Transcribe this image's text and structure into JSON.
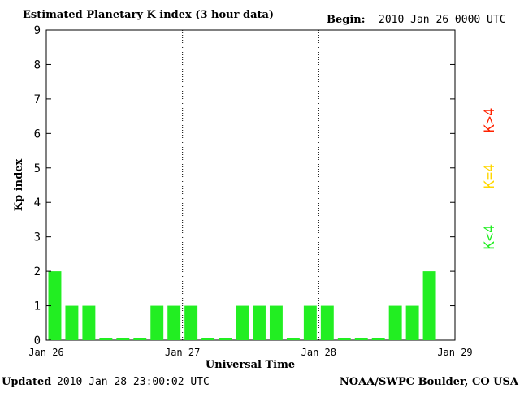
{
  "header": {
    "title": "Estimated Planetary K index (3 hour data)",
    "begin_label": "Begin:",
    "begin_value": "2010 Jan 26 0000 UTC"
  },
  "footer": {
    "updated_label": "Updated",
    "updated_value": "2010 Jan 28 23:00:02 UTC",
    "source": "NOAA/SWPC Boulder, CO USA"
  },
  "legend": {
    "low": "K<4",
    "mid": "K=4",
    "high": "K>4"
  },
  "colors": {
    "low": "#22ee22",
    "mid": "#ffd700",
    "high": "#ff2200"
  },
  "chart_data": {
    "type": "bar",
    "title": "Estimated Planetary K index (3 hour data)",
    "xlabel": "Universal Time",
    "ylabel": "Kp index",
    "ylim": [
      0,
      9
    ],
    "xlim_hours": [
      0,
      72
    ],
    "interval_hours": 3,
    "x_ticks": [
      "Jan 26",
      "Jan 27",
      "Jan 28",
      "Jan 29"
    ],
    "y_ticks": [
      "0",
      "1",
      "2",
      "3",
      "4",
      "5",
      "6",
      "7",
      "8",
      "9"
    ],
    "day_separators": [
      "Jan 27",
      "Jan 28"
    ],
    "values": [
      2,
      1,
      1,
      0,
      0,
      0,
      1,
      1,
      1,
      0,
      0,
      1,
      1,
      1,
      0,
      1,
      1,
      0,
      0,
      0,
      1,
      1,
      2
    ],
    "grid": false
  }
}
